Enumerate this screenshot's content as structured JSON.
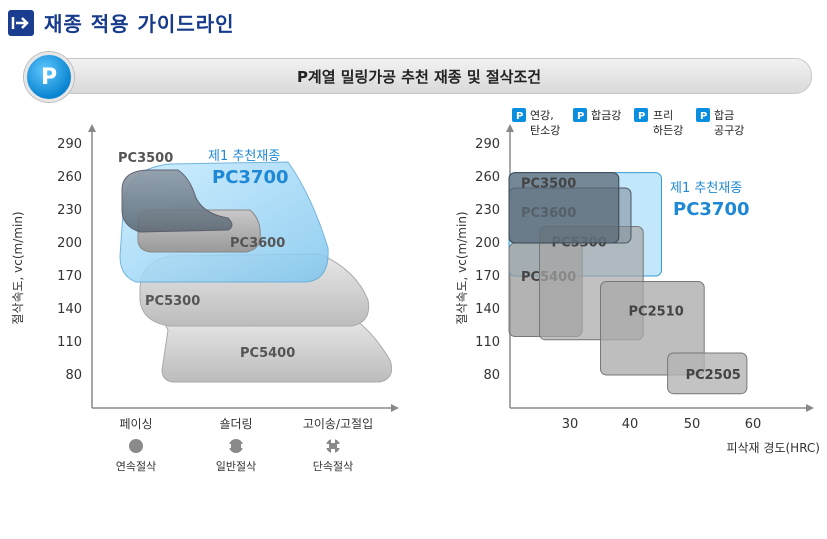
{
  "header": {
    "title": "재종 적용 가이드라인",
    "icon": "enter-arrow-icon"
  },
  "banner": {
    "badge": "P",
    "title": "P계열 밀링가공 추천 재종 및 절삭조건"
  },
  "colors": {
    "navy": "#163a8c",
    "blue": "#0a84d0",
    "highlight": "#1e88d6"
  },
  "chart_data": [
    {
      "type": "area",
      "ylabel": "절삭속도, vc(m/min)",
      "yticks": [
        290,
        260,
        230,
        200,
        170,
        140,
        110,
        80
      ],
      "categories": [
        "페이싱",
        "숄더링",
        "고이송/고절입"
      ],
      "cutting_modes": [
        {
          "icon": "solid-circle-icon",
          "label": "연속절삭"
        },
        {
          "icon": "notched-circle-icon",
          "label": "일반절삭"
        },
        {
          "icon": "cross-circle-icon",
          "label": "단속절삭"
        }
      ],
      "highlight": {
        "caption": "제1 추천재종",
        "grade": "PC3700"
      },
      "series_labels": {
        "PC3500": "PC3500",
        "PC3600": "PC3600",
        "PC5300": "PC5300",
        "PC5400": "PC5400"
      }
    },
    {
      "type": "area",
      "ylabel": "절삭속도, vc(m/min)",
      "xlabel": "피삭재 경도(HRC)",
      "yticks": [
        290,
        260,
        230,
        200,
        170,
        140,
        110,
        80
      ],
      "xticks": [
        30,
        40,
        50,
        60
      ],
      "materials": [
        {
          "badge": "P",
          "line1": "연강,",
          "line2": "탄소강"
        },
        {
          "badge": "P",
          "line1": "합금강",
          "line2": ""
        },
        {
          "badge": "P",
          "line1": "프리",
          "line2": "하든강"
        },
        {
          "badge": "P",
          "line1": "합금",
          "line2": "공구강"
        }
      ],
      "highlight": {
        "caption": "제1 추천재종",
        "grade": "PC3700"
      },
      "grades": [
        {
          "name": "PC3500",
          "hrc": [
            20,
            38
          ],
          "vc": [
            200,
            264
          ]
        },
        {
          "name": "PC3600",
          "hrc": [
            20,
            40
          ],
          "vc": [
            200,
            250
          ]
        },
        {
          "name": "PC3700",
          "hrc": [
            20,
            45
          ],
          "vc": [
            170,
            264
          ]
        },
        {
          "name": "PC5400",
          "hrc": [
            20,
            32
          ],
          "vc": [
            115,
            200
          ]
        },
        {
          "name": "PC5300",
          "hrc": [
            25,
            42
          ],
          "vc": [
            112,
            215
          ]
        },
        {
          "name": "PC2510",
          "hrc": [
            35,
            52
          ],
          "vc": [
            80,
            165
          ]
        },
        {
          "name": "PC2505",
          "hrc": [
            46,
            59
          ],
          "vc": [
            63,
            100
          ]
        }
      ]
    }
  ]
}
